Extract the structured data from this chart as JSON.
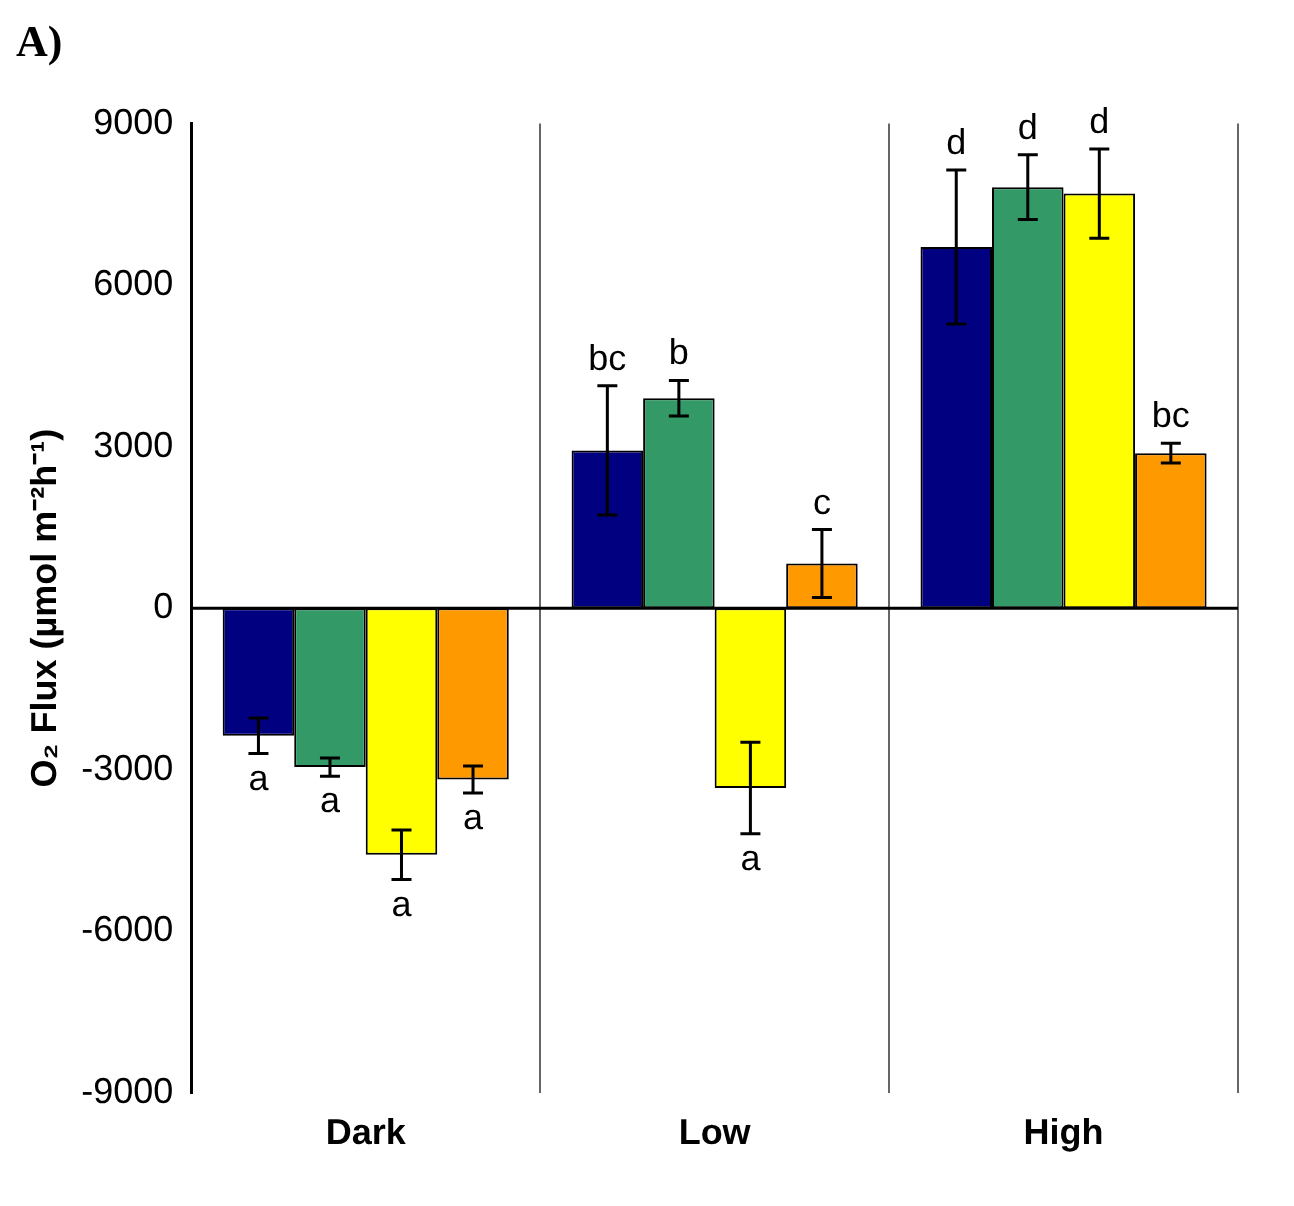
{
  "chart_data": {
    "type": "bar",
    "ylabel": "O₂ Flux (µmol m⁻²h⁻¹)",
    "categories": [
      "Dark",
      "Low",
      "High"
    ],
    "series": [
      {
        "color": "#000080",
        "values": [
          -2370,
          2930,
          6710
        ],
        "errors": [
          330,
          1200,
          1430
        ]
      },
      {
        "color": "#339966",
        "values": [
          -2950,
          3900,
          7820
        ],
        "errors": [
          170,
          330,
          600
        ]
      },
      {
        "color": "#ffff00",
        "values": [
          -4580,
          -3340,
          7700
        ],
        "errors": [
          460,
          850,
          830
        ]
      },
      {
        "color": "#ff9900",
        "values": [
          -3180,
          830,
          2880
        ],
        "errors": [
          250,
          630,
          185
        ]
      }
    ],
    "ylim": [
      -9000,
      9000
    ],
    "yticks": [
      -9000,
      -6000,
      -3000,
      0,
      3000,
      6000,
      9000
    ],
    "grid": "x",
    "legend": false,
    "annotations": [
      "A)",
      "a",
      "a",
      "a",
      "a",
      "bc",
      "b",
      "a",
      "c",
      "d",
      "d",
      "d",
      "bc"
    ]
  }
}
